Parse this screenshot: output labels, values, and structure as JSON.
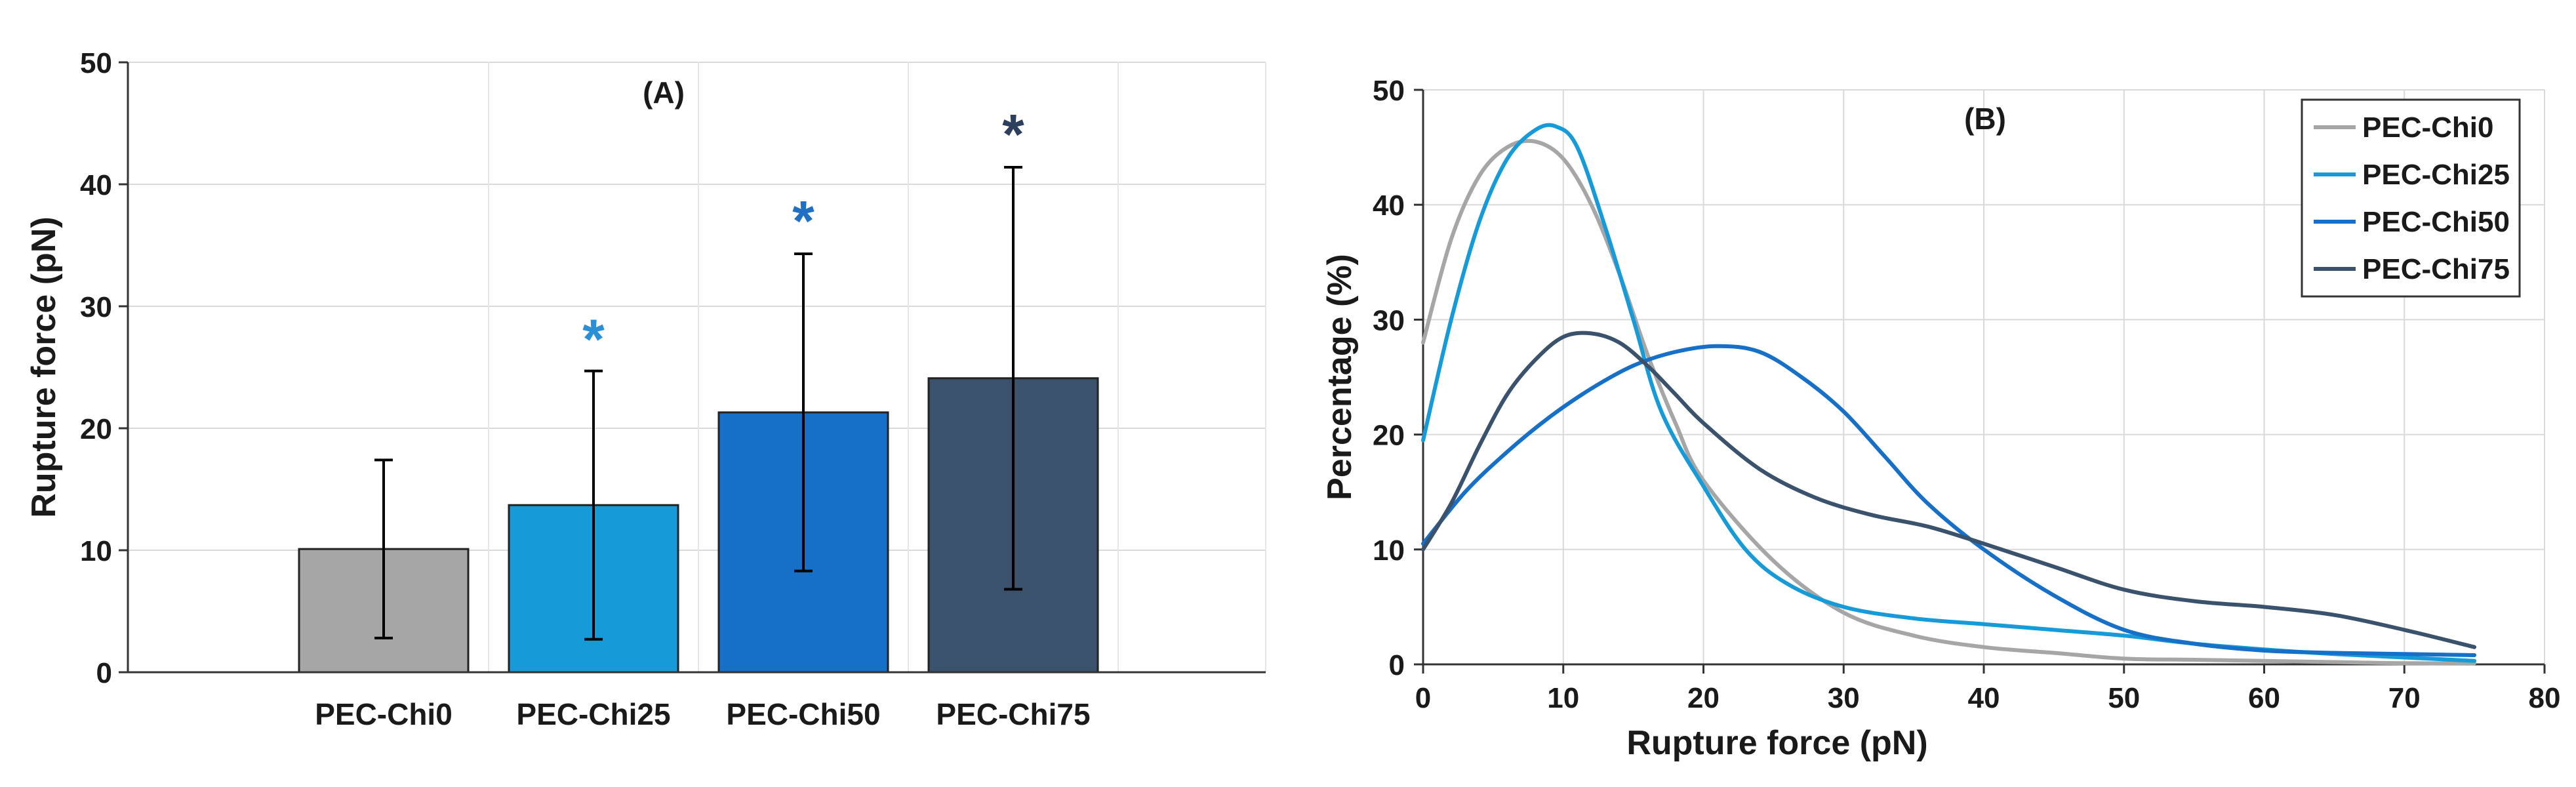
{
  "chart_data": [
    {
      "type": "bar",
      "panel_label": "(A)",
      "ylabel": "Rupture force (pN)",
      "xlabel": "",
      "ylim": [
        0,
        50
      ],
      "yticks": [
        "0",
        "10",
        "20",
        "30",
        "40",
        "50"
      ],
      "categories": [
        "PEC-Chi0",
        "PEC-Chi25",
        "PEC-Chi50",
        "PEC-Chi75"
      ],
      "values": [
        10.1,
        13.7,
        21.3,
        24.1
      ],
      "errors": [
        7.3,
        11.0,
        13.0,
        17.3
      ],
      "colors": [
        "#a6a6a6",
        "#169bd8",
        "#1670c8",
        "#3a526b"
      ],
      "significance": [
        {
          "category": "PEC-Chi25",
          "marker": "*",
          "color": "#2a8fd6",
          "value": 28.5
        },
        {
          "category": "PEC-Chi50",
          "marker": "*",
          "color": "#1f6fc4",
          "value": 38.2
        },
        {
          "category": "PEC-Chi75",
          "marker": "*",
          "color": "#2c3f5e",
          "value": 45.3
        }
      ],
      "grid": true
    },
    {
      "type": "line",
      "panel_label": "(B)",
      "xlabel": "Rupture force (pN)",
      "ylabel": "Percentage (%)",
      "xlim": [
        0,
        80
      ],
      "ylim": [
        0,
        50
      ],
      "xticks": [
        "0",
        "10",
        "20",
        "30",
        "40",
        "50",
        "60",
        "70",
        "80"
      ],
      "yticks": [
        "0",
        "10",
        "20",
        "30",
        "40",
        "50"
      ],
      "grid": true,
      "legend_position": "top-right",
      "series": [
        {
          "name": "PEC-Chi0",
          "color": "#a6a6a6",
          "x": [
            0,
            2,
            4,
            6,
            8,
            10,
            12,
            14,
            16,
            18,
            20,
            25,
            30,
            35,
            40,
            45,
            50,
            55,
            60,
            65,
            70,
            75
          ],
          "y": [
            28,
            37,
            42.5,
            45,
            45.5,
            44,
            40,
            34,
            27,
            21,
            16,
            9,
            4.5,
            2.5,
            1.5,
            1,
            0.5,
            0.4,
            0.3,
            0.2,
            0.1,
            0.1
          ]
        },
        {
          "name": "PEC-Chi25",
          "color": "#169bd8",
          "x": [
            0,
            2,
            4,
            6,
            8,
            9.5,
            11,
            13,
            15,
            17,
            20,
            23,
            26,
            30,
            35,
            40,
            45,
            50,
            55,
            60,
            65,
            70,
            75
          ],
          "y": [
            19.5,
            30,
            38.5,
            44,
            46.5,
            46.8,
            45,
            38,
            30,
            22,
            15.5,
            10,
            7,
            5,
            4,
            3.5,
            3,
            2.5,
            1.8,
            1.3,
            0.9,
            0.6,
            0.3
          ]
        },
        {
          "name": "PEC-Chi50",
          "color": "#1670c8",
          "x": [
            0,
            3,
            6,
            9,
            12,
            15,
            18,
            21,
            24,
            27,
            30,
            33,
            36,
            40,
            45,
            50,
            55,
            60,
            65,
            70,
            75
          ],
          "y": [
            10.5,
            15,
            18.5,
            21.5,
            24,
            26,
            27.2,
            27.7,
            27.2,
            25,
            22,
            18,
            14,
            10,
            6,
            3,
            1.8,
            1.2,
            1,
            0.9,
            0.8
          ]
        },
        {
          "name": "PEC-Chi75",
          "color": "#3a526b",
          "x": [
            0,
            2,
            4,
            6,
            8,
            10,
            12,
            14,
            16,
            18,
            20,
            24,
            28,
            32,
            36,
            40,
            45,
            50,
            55,
            60,
            65,
            70,
            75
          ],
          "y": [
            10,
            14,
            19,
            23.5,
            26.5,
            28.5,
            28.8,
            28,
            26,
            23.5,
            21,
            17,
            14.5,
            13,
            12,
            10.5,
            8.5,
            6.5,
            5.5,
            5,
            4.3,
            3,
            1.5
          ]
        }
      ]
    }
  ]
}
